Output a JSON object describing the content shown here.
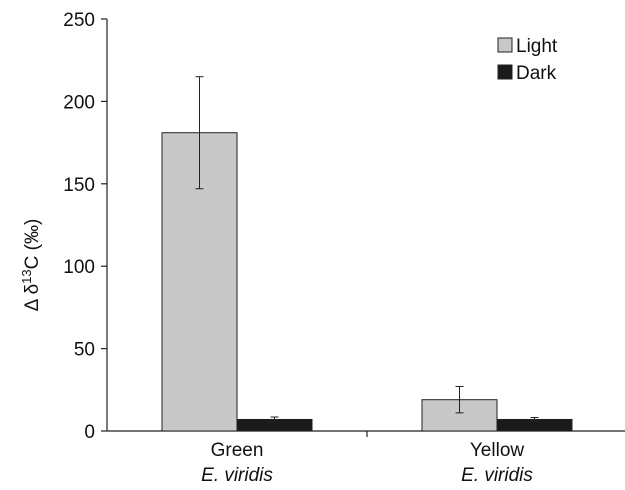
{
  "chart_data": {
    "type": "bar",
    "categories": [
      "Green",
      "Yellow"
    ],
    "category_sublabels": [
      "E. viridis",
      "E. viridis"
    ],
    "series": [
      {
        "name": "Light",
        "values": [
          181,
          19
        ],
        "error": [
          34,
          8
        ],
        "color": "#c8c8c8"
      },
      {
        "name": "Dark",
        "values": [
          7,
          7
        ],
        "error": [
          1.5,
          1.2
        ],
        "color": "#1a1a1a"
      }
    ],
    "ylabel": "Δ δ¹³C (‰)",
    "ylabel_parts": {
      "prefix": "Δ δ",
      "sup": "13",
      "suffix": "C (‰)"
    },
    "ylim": [
      0,
      250
    ],
    "yticks": [
      0,
      50,
      100,
      150,
      200,
      250
    ],
    "legend_position": "top-right",
    "grid": false
  }
}
